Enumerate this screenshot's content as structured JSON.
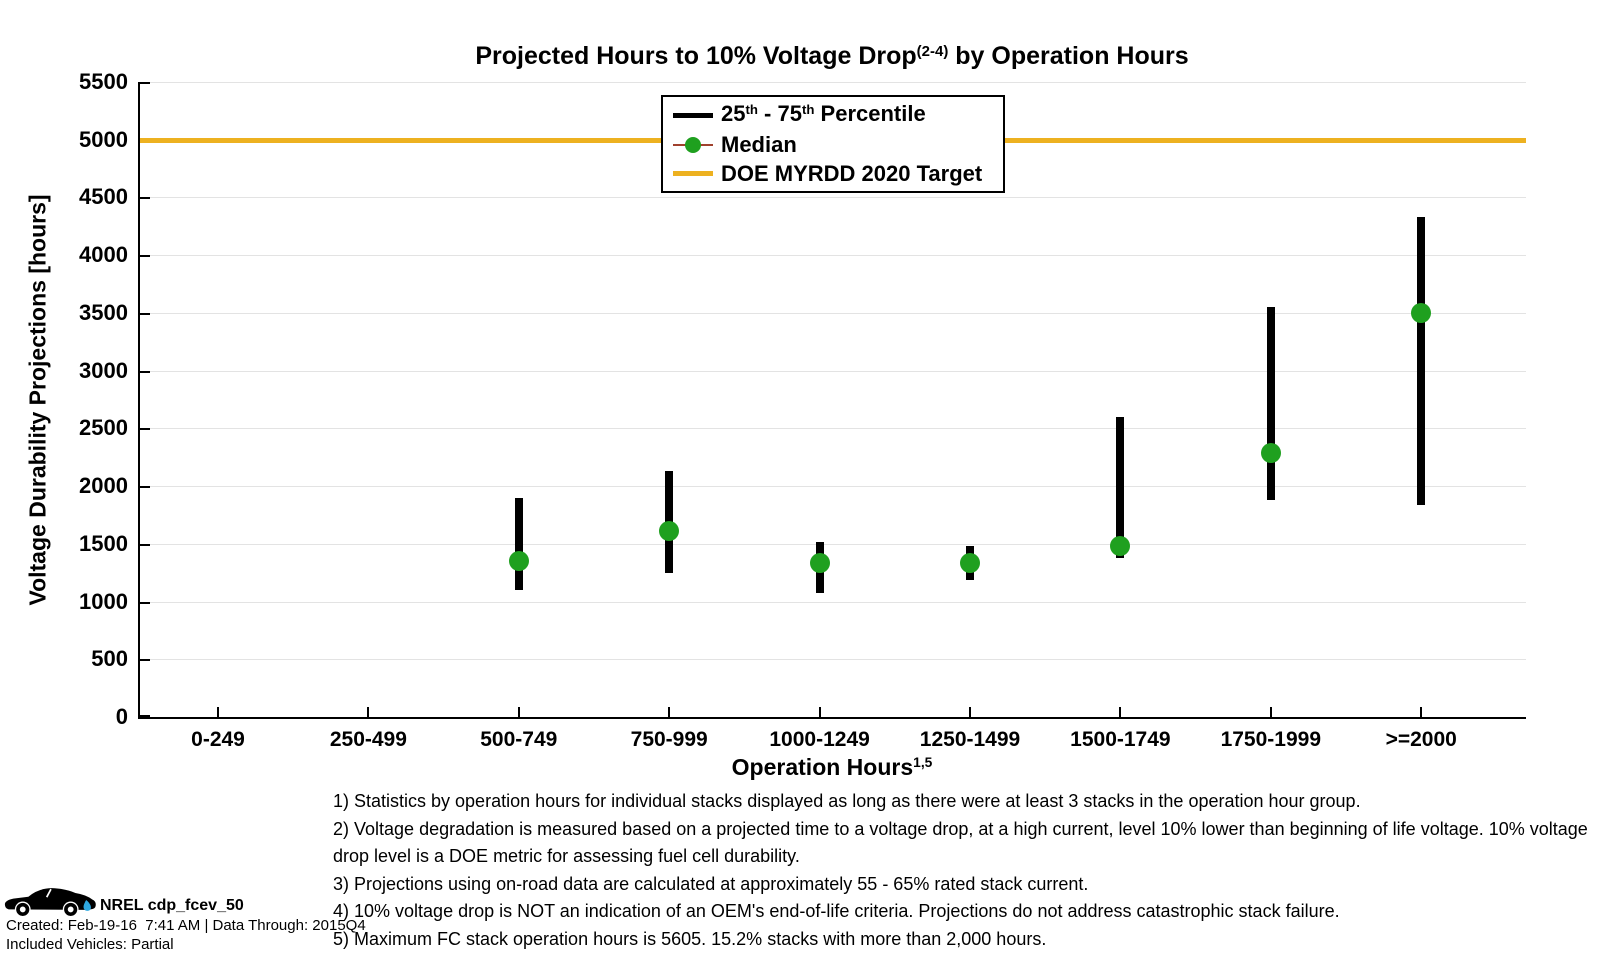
{
  "chart_data": {
    "type": "errorbar",
    "title": "Projected Hours to 10% Voltage Drop(2-4) by Operation Hours",
    "title_segments": [
      {
        "t": "Projected Hours to 10% Voltage Drop"
      },
      {
        "t": "(2-4)",
        "sup": true
      },
      {
        "t": " by Operation Hours"
      }
    ],
    "xlabel": "Operation Hours",
    "xlabel_segments": [
      {
        "t": "Operation Hours"
      },
      {
        "t": "1,5",
        "sup": true
      }
    ],
    "ylabel": "Voltage Durability Projections [hours]",
    "ylim": [
      0,
      5500
    ],
    "ytick_step": 500,
    "grid": "horizontal-only",
    "categories": [
      "0-249",
      "250-499",
      "500-749",
      "750-999",
      "1000-1249",
      "1250-1499",
      "1500-1749",
      "1750-1999",
      ">=2000"
    ],
    "series": [
      {
        "name": "25th - 75th Percentile",
        "name_segments": [
          {
            "t": "25"
          },
          {
            "t": "th",
            "sup": true
          },
          {
            "t": " - 75"
          },
          {
            "t": "th",
            "sup": true
          },
          {
            "t": " Percentile"
          }
        ],
        "type": "iqr-range",
        "color": "#000000",
        "q25": [
          null,
          null,
          1100,
          1250,
          1070,
          1190,
          1380,
          1880,
          1840
        ],
        "q75": [
          null,
          null,
          1900,
          2130,
          1515,
          1480,
          2600,
          3550,
          4330
        ]
      },
      {
        "name": "Median",
        "name_segments": [
          {
            "t": "Median"
          }
        ],
        "type": "point",
        "color": "#1FA01F",
        "line_color": "#A0412D",
        "values": [
          null,
          null,
          1350,
          1610,
          1330,
          1330,
          1480,
          2290,
          3500
        ]
      },
      {
        "name": "DOE MYRDD 2020 Target",
        "name_segments": [
          {
            "t": "DOE MYRDD 2020 Target"
          }
        ],
        "type": "hline",
        "color": "#EDB120",
        "value": 5000
      }
    ],
    "legend": {
      "position": "top-center-inside",
      "entries": [
        "25th - 75th Percentile",
        "Median",
        "DOE MYRDD 2020 Target"
      ]
    }
  },
  "footnotes": [
    "1) Statistics by operation hours for individual stacks displayed as long as there were at least 3 stacks in the operation hour group.",
    "2) Voltage degradation is measured based on a projected time to a voltage drop, at a high current, level 10% lower than beginning of life voltage. 10% voltage drop level is a DOE metric for assessing fuel cell durability.",
    "3) Projections using on-road data are calculated at approximately 55 - 65% rated stack current.",
    "4) 10% voltage drop is NOT an indication of an OEM's end-of-life criteria. Projections do not address catastrophic stack failure.",
    "5) Maximum FC stack operation hours is 5605. 15.2% stacks with more than 2,000 hours."
  ],
  "stamp": {
    "title": "NREL cdp_fcev_50",
    "created": "Created: Feb-19-16  7:41 AM | Data Through: 2015Q4",
    "included": "Included Vehicles: Partial",
    "droplet_color": "#2EA8E0"
  },
  "colors": {
    "grid": "#E3E3E3",
    "axis": "#000000",
    "target": "#EDB120",
    "median_marker": "#1FA01F",
    "median_line": "#A0412D",
    "bar": "#000000",
    "text": "#000000",
    "background": "#FFFFFF"
  }
}
